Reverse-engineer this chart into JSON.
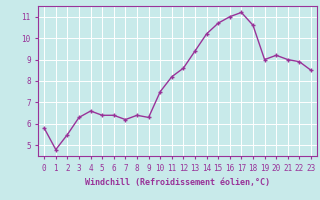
{
  "x": [
    0,
    1,
    2,
    3,
    4,
    5,
    6,
    7,
    8,
    9,
    10,
    11,
    12,
    13,
    14,
    15,
    16,
    17,
    18,
    19,
    20,
    21,
    22,
    23
  ],
  "y": [
    5.8,
    4.8,
    5.5,
    6.3,
    6.6,
    6.4,
    6.4,
    6.2,
    6.4,
    6.3,
    7.5,
    8.2,
    8.6,
    9.4,
    10.2,
    10.7,
    11.0,
    11.2,
    10.6,
    9.0,
    9.2,
    9.0,
    8.9,
    8.5
  ],
  "line_color": "#993399",
  "marker": "+",
  "marker_color": "#993399",
  "bg_color": "#c8eaea",
  "grid_color": "#ffffff",
  "xlabel": "Windchill (Refroidissement éolien,°C)",
  "label_color": "#993399",
  "tick_color": "#993399",
  "xlim": [
    -0.5,
    23.5
  ],
  "ylim": [
    4.5,
    11.5
  ],
  "yticks": [
    5,
    6,
    7,
    8,
    9,
    10,
    11
  ],
  "xticks": [
    0,
    1,
    2,
    3,
    4,
    5,
    6,
    7,
    8,
    9,
    10,
    11,
    12,
    13,
    14,
    15,
    16,
    17,
    18,
    19,
    20,
    21,
    22,
    23
  ],
  "spine_color": "#993399",
  "linewidth": 1.0,
  "markersize": 3,
  "tick_fontsize": 5.5,
  "xlabel_fontsize": 6.0
}
